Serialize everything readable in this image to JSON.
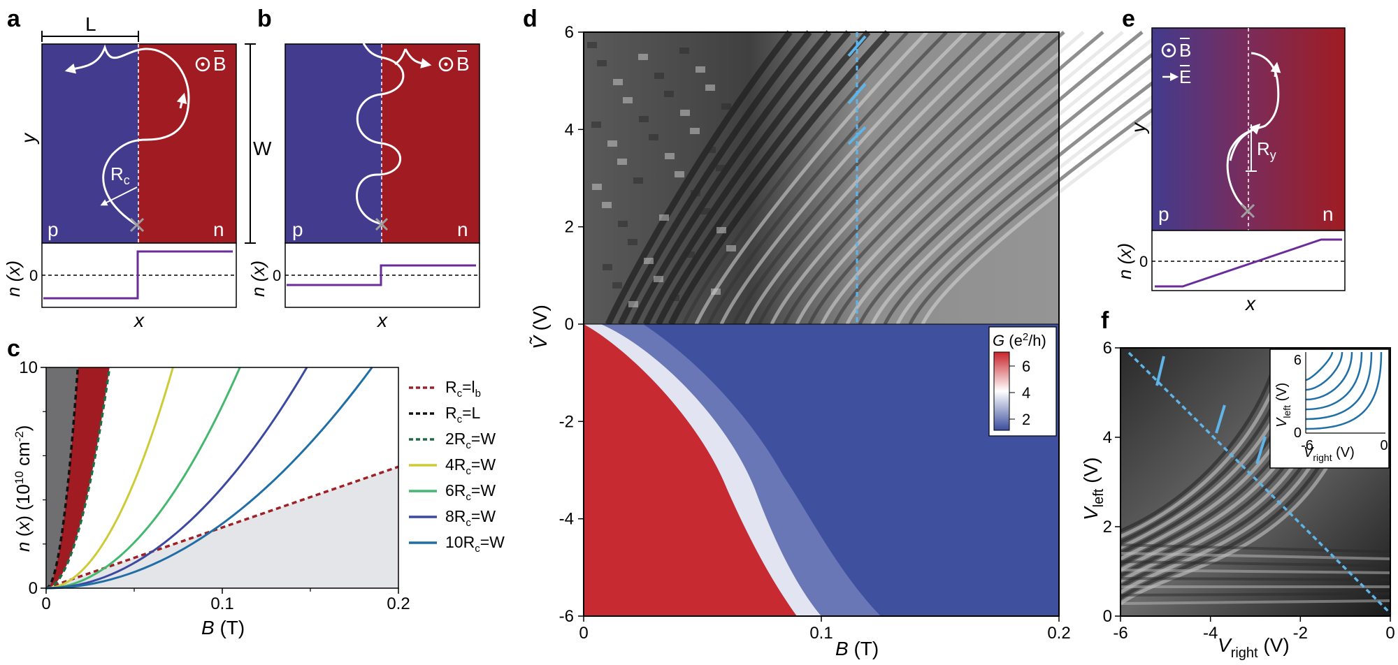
{
  "panels": {
    "a": {
      "label": "a",
      "length_label": "L",
      "width_label": "W",
      "field_label": "B",
      "y_label": "y",
      "radius_label": "R",
      "radius_sub": "c",
      "p_label": "p",
      "n_label": "n",
      "n_axis_label": "n (x)",
      "zero_label": "0",
      "x_label": "x",
      "left_color": "#433b8e",
      "right_color": "#a01c22"
    },
    "b": {
      "label": "b",
      "field_label": "B",
      "p_label": "p",
      "n_label": "n",
      "n_axis_label": "n (x)",
      "zero_label": "0",
      "x_label": "x"
    },
    "c": {
      "label": "c",
      "x_tick_labels": [
        "0",
        "0.1",
        "0.2"
      ],
      "y_tick_labels": [
        "0",
        "10"
      ],
      "legend": [
        {
          "main": "R",
          "sub": "c",
          "rest": "=l",
          "sub2": "b",
          "color": "#a02028",
          "dash": true
        },
        {
          "main": "R",
          "sub": "c",
          "rest": "=L",
          "sub2": "",
          "color": "#111111",
          "dash": true
        },
        {
          "main": "2R",
          "sub": "c",
          "rest": "=W",
          "sub2": "",
          "color": "#1e6b46",
          "dash": true
        },
        {
          "main": "4R",
          "sub": "c",
          "rest": "=W",
          "sub2": "",
          "color": "#cdcc38",
          "dash": false
        },
        {
          "main": "6R",
          "sub": "c",
          "rest": "=W",
          "sub2": "",
          "color": "#45b870",
          "dash": false
        },
        {
          "main": "8R",
          "sub": "c",
          "rest": "=W",
          "sub2": "",
          "color": "#3b4aa0",
          "dash": false
        },
        {
          "main": "10R",
          "sub": "c",
          "rest": "=W",
          "sub2": "",
          "color": "#1f6fa6",
          "dash": false
        }
      ]
    },
    "d": {
      "label": "d",
      "x_tick_labels": [
        "0",
        "0.1",
        "0.2"
      ],
      "y_tick_labels_top": [
        "0",
        "2",
        "4",
        "6"
      ],
      "y_tick_labels_bottom": [
        "-2",
        "-4",
        "-6"
      ],
      "colorbar_tick_labels": [
        "6",
        "4",
        "2"
      ],
      "colorbar_low": "#3b4d9c",
      "colorbar_high": "#c8242b"
    },
    "e": {
      "label": "e",
      "field_label": "B",
      "efield_label": "E",
      "y_label": "y",
      "radius_label": "R",
      "radius_sub": "y",
      "p_label": "p",
      "n_label": "n",
      "n_axis_label": "n (x)",
      "zero_label": "0",
      "x_label": "x"
    },
    "f": {
      "label": "f",
      "x_tick_labels": [
        "-6",
        "-4",
        "-2",
        "0"
      ],
      "y_tick_labels": [
        "0",
        "2",
        "4",
        "6"
      ],
      "inset_y_ticks": [
        "0",
        "6"
      ],
      "inset_x_ticks": [
        "-6",
        "0"
      ]
    }
  },
  "chart_data": [
    {
      "type": "line",
      "panel": "c",
      "xlabel": "B (T)",
      "ylabel": "n (x) (10^10 cm^-2)",
      "xlim": [
        0,
        0.2
      ],
      "ylim": [
        0,
        10
      ],
      "series": [
        {
          "name": "Rc=lb",
          "x": [
            0,
            0.2
          ],
          "y": [
            0,
            5.5
          ]
        },
        {
          "name": "Rc=L",
          "x": [
            0,
            0.009,
            0.0135,
            0.018
          ],
          "y": [
            0,
            2.5,
            5.6,
            10
          ]
        },
        {
          "name": "2Rc=W",
          "x": [
            0,
            0.018,
            0.027,
            0.036
          ],
          "y": [
            0,
            2.5,
            5.6,
            10
          ]
        },
        {
          "name": "4Rc=W",
          "x": [
            0,
            0.036,
            0.054,
            0.072
          ],
          "y": [
            0,
            2.5,
            5.6,
            10
          ]
        },
        {
          "name": "6Rc=W",
          "x": [
            0,
            0.055,
            0.082,
            0.11
          ],
          "y": [
            0,
            2.5,
            5.6,
            10
          ]
        },
        {
          "name": "8Rc=W",
          "x": [
            0,
            0.074,
            0.111,
            0.148
          ],
          "y": [
            0,
            2.5,
            5.6,
            10
          ]
        },
        {
          "name": "10Rc=W",
          "x": [
            0,
            0.092,
            0.138,
            0.185
          ],
          "y": [
            0,
            2.5,
            5.6,
            10
          ]
        }
      ]
    },
    {
      "type": "heatmap",
      "panel": "d",
      "xlabel": "B (T)",
      "ylabel": "Ṽ (V)",
      "xlim": [
        0,
        0.2
      ],
      "ylim": [
        -6,
        6
      ],
      "cut_line_x": 0.115,
      "colorbar_label": "G (e²/h)",
      "colorbar_range": [
        1,
        7
      ]
    },
    {
      "type": "heatmap",
      "panel": "f",
      "xlabel": "V_right (V)",
      "ylabel": "V_left (V)",
      "xlim": [
        -6,
        0
      ],
      "ylim": [
        0,
        6
      ],
      "inset_xlabel": "V_right (V)",
      "inset_ylabel": "V_left (V)"
    }
  ]
}
